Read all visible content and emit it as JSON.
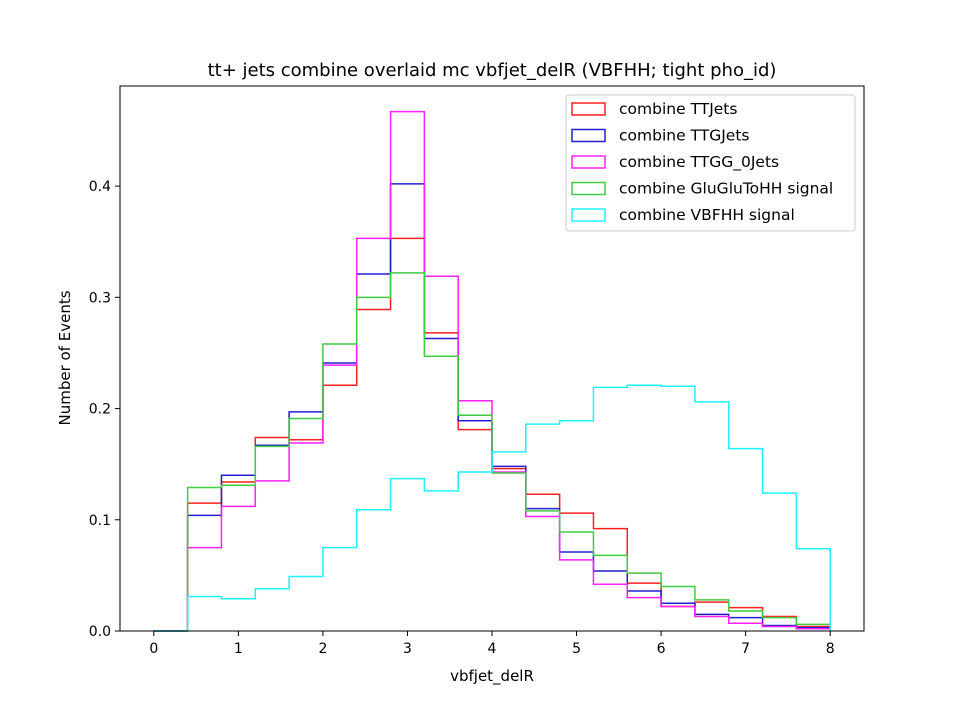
{
  "chart_data": {
    "type": "step-histogram",
    "title": "tt+ jets combine overlaid mc vbfjet_delR (VBFHH; tight pho_id)",
    "xlabel": "vbfjet_delR",
    "ylabel": "Number of Events",
    "xlim": [
      -0.4,
      8.4
    ],
    "ylim": [
      0,
      0.49
    ],
    "xticks": [
      "0",
      "1",
      "2",
      "3",
      "4",
      "5",
      "6",
      "7",
      "8"
    ],
    "yticks": [
      "0.0",
      "0.1",
      "0.2",
      "0.3",
      "0.4"
    ],
    "grid": false,
    "legend_position": "top-right",
    "bin_edges": [
      0,
      0.4,
      0.8,
      1.2,
      1.6,
      2.0,
      2.4,
      2.8,
      3.2,
      3.6,
      4.0,
      4.4,
      4.8,
      5.2,
      5.6,
      6.0,
      6.4,
      6.8,
      7.2,
      7.6,
      8.0
    ],
    "series": [
      {
        "name": "combine TTJets",
        "color": "#ff2020",
        "values": [
          0.0,
          0.115,
          0.134,
          0.174,
          0.172,
          0.221,
          0.289,
          0.353,
          0.268,
          0.181,
          0.146,
          0.123,
          0.106,
          0.092,
          0.043,
          0.022,
          0.026,
          0.021,
          0.013,
          0.004
        ]
      },
      {
        "name": "combine TTGJets",
        "color": "#2020d0",
        "values": [
          0.0,
          0.104,
          0.14,
          0.167,
          0.197,
          0.241,
          0.321,
          0.402,
          0.263,
          0.189,
          0.148,
          0.11,
          0.071,
          0.054,
          0.036,
          0.025,
          0.015,
          0.012,
          0.005,
          0.003
        ]
      },
      {
        "name": "combine TTGG_0Jets",
        "color": "#ff20ff",
        "values": [
          0.0,
          0.075,
          0.112,
          0.135,
          0.169,
          0.239,
          0.353,
          0.467,
          0.319,
          0.207,
          0.143,
          0.103,
          0.064,
          0.042,
          0.03,
          0.022,
          0.013,
          0.007,
          0.004,
          0.002
        ]
      },
      {
        "name": "combine GluGluToHH signal",
        "color": "#40cc40",
        "values": [
          0.0,
          0.129,
          0.131,
          0.166,
          0.191,
          0.258,
          0.3,
          0.322,
          0.247,
          0.194,
          0.142,
          0.108,
          0.089,
          0.068,
          0.052,
          0.04,
          0.028,
          0.018,
          0.012,
          0.006
        ]
      },
      {
        "name": "combine VBFHH signal",
        "color": "#20f0ff",
        "values": [
          0.0,
          0.031,
          0.029,
          0.038,
          0.049,
          0.075,
          0.109,
          0.137,
          0.126,
          0.143,
          0.161,
          0.186,
          0.189,
          0.219,
          0.221,
          0.22,
          0.206,
          0.164,
          0.124,
          0.074
        ]
      }
    ]
  }
}
